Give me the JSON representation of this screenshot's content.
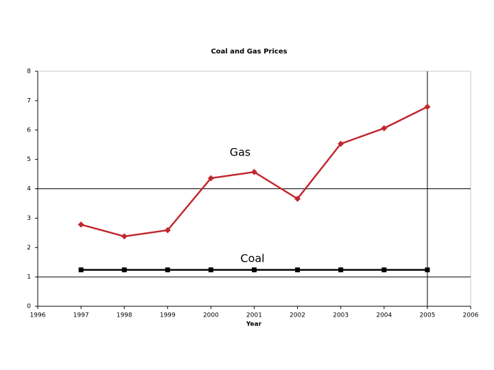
{
  "chart_data": {
    "type": "line",
    "title": "Coal and Gas Prices",
    "x_label": "Year",
    "x": [
      1997,
      1998,
      1999,
      2000,
      2001,
      2002,
      2003,
      2004,
      2005
    ],
    "series": [
      {
        "name": "Gas",
        "color": "#c0272d",
        "marker": "diamond",
        "values": [
          2.78,
          2.38,
          2.59,
          4.36,
          4.57,
          3.66,
          5.53,
          6.06,
          6.79
        ]
      },
      {
        "name": "Coal",
        "color": "#000000",
        "marker": "square",
        "values": [
          1.24,
          1.24,
          1.24,
          1.24,
          1.24,
          1.24,
          1.24,
          1.24,
          1.24
        ]
      }
    ],
    "xlim": [
      1996,
      2006
    ],
    "xticks": [
      1996,
      1997,
      1998,
      1999,
      2000,
      2001,
      2002,
      2003,
      2004,
      2005,
      2006
    ],
    "ylim": [
      0,
      8
    ],
    "yticks": [
      0,
      1,
      2,
      3,
      4,
      5,
      6,
      7,
      8
    ],
    "hlines": [
      1,
      4
    ],
    "vlines": [
      2005
    ]
  }
}
